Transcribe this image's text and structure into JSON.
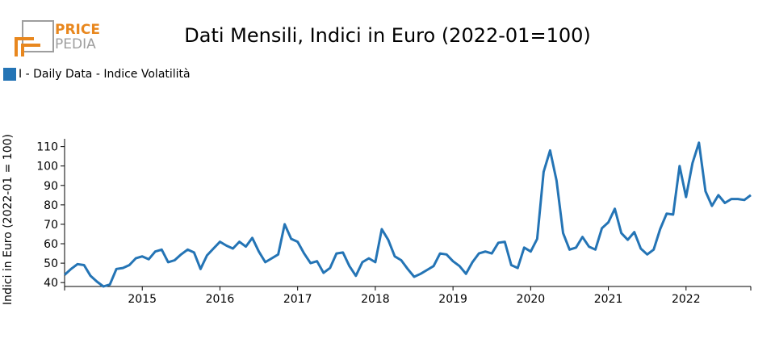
{
  "logo": {
    "line1": "PRICE",
    "line2": "PEDIA",
    "accent": "#e8871e",
    "secondary": "#9e9e9e"
  },
  "colors": {
    "series": "#2474b5",
    "axis": "#000000"
  },
  "chart_data": {
    "type": "line",
    "title": "Dati Mensili, Indici in Euro (2022-01=100)",
    "xlabel": "",
    "ylabel": "Indici in Euro (2022-01 = 100)",
    "ylim": [
      38,
      114
    ],
    "xlim": [
      "2014-01",
      "2022-11"
    ],
    "yticks": [
      40,
      50,
      60,
      70,
      80,
      90,
      100,
      110
    ],
    "xticks": [
      "2015",
      "2016",
      "2017",
      "2018",
      "2019",
      "2020",
      "2021",
      "2022"
    ],
    "grid": false,
    "legend_position": "top-left",
    "series": [
      {
        "name": "I - Daily Data - Indice Volatilità",
        "x": [
          "2014-01",
          "2014-02",
          "2014-03",
          "2014-04",
          "2014-05",
          "2014-06",
          "2014-07",
          "2014-08",
          "2014-09",
          "2014-10",
          "2014-11",
          "2014-12",
          "2015-01",
          "2015-02",
          "2015-03",
          "2015-04",
          "2015-05",
          "2015-06",
          "2015-07",
          "2015-08",
          "2015-09",
          "2015-10",
          "2015-11",
          "2015-12",
          "2016-01",
          "2016-02",
          "2016-03",
          "2016-04",
          "2016-05",
          "2016-06",
          "2016-07",
          "2016-08",
          "2016-09",
          "2016-10",
          "2016-11",
          "2016-12",
          "2017-01",
          "2017-02",
          "2017-03",
          "2017-04",
          "2017-05",
          "2017-06",
          "2017-07",
          "2017-08",
          "2017-09",
          "2017-10",
          "2017-11",
          "2017-12",
          "2018-01",
          "2018-02",
          "2018-03",
          "2018-04",
          "2018-05",
          "2018-06",
          "2018-07",
          "2018-08",
          "2018-09",
          "2018-10",
          "2018-11",
          "2018-12",
          "2019-01",
          "2019-02",
          "2019-03",
          "2019-04",
          "2019-05",
          "2019-06",
          "2019-07",
          "2019-08",
          "2019-09",
          "2019-10",
          "2019-11",
          "2019-12",
          "2020-01",
          "2020-02",
          "2020-03",
          "2020-04",
          "2020-05",
          "2020-06",
          "2020-07",
          "2020-08",
          "2020-09",
          "2020-10",
          "2020-11",
          "2020-12",
          "2021-01",
          "2021-02",
          "2021-03",
          "2021-04",
          "2021-05",
          "2021-06",
          "2021-07",
          "2021-08",
          "2021-09",
          "2021-10",
          "2021-11",
          "2021-12",
          "2022-01",
          "2022-02",
          "2022-03",
          "2022-04",
          "2022-05",
          "2022-06",
          "2022-07",
          "2022-08",
          "2022-09",
          "2022-10",
          "2022-11"
        ],
        "values": [
          44,
          47,
          49.5,
          49,
          43.5,
          40.5,
          38,
          39,
          47,
          47.5,
          49,
          52.5,
          53.5,
          52,
          56,
          57,
          50.5,
          51.5,
          54.5,
          57,
          55.5,
          47,
          54,
          57.5,
          61,
          59,
          57.5,
          61,
          58.5,
          63,
          56,
          50.5,
          52.5,
          54.5,
          70,
          62.5,
          61,
          55,
          50,
          51,
          45,
          47.5,
          55,
          55.5,
          48.5,
          43.5,
          50.5,
          52.5,
          50.5,
          67.5,
          62,
          53.5,
          51.5,
          47,
          43,
          44.5,
          46.5,
          48.5,
          55,
          54.5,
          51,
          48.5,
          44.5,
          50.5,
          55,
          56,
          55,
          60.5,
          61,
          49,
          47.5,
          58,
          56,
          62.5,
          97,
          108,
          92.5,
          65.5,
          57,
          58,
          63.5,
          58.5,
          57,
          68,
          71,
          78,
          65.5,
          62,
          66,
          57.5,
          54.5,
          57,
          67.5,
          75.5,
          75,
          100,
          84,
          101.5,
          112,
          87,
          79.5,
          85,
          81,
          83,
          83,
          82.5,
          85
        ]
      }
    ]
  }
}
